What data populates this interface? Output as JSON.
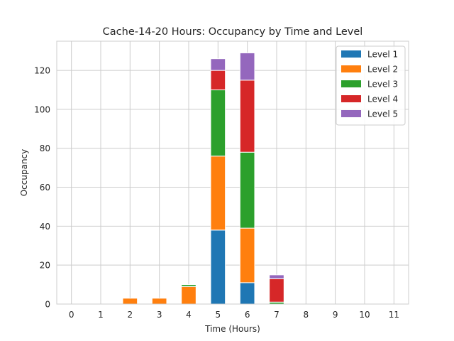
{
  "chart_data": {
    "type": "bar",
    "stacked": true,
    "title": "Cache-14-20 Hours: Occupancy by Time and Level",
    "xlabel": "Time (Hours)",
    "ylabel": "Occupancy",
    "ylim": [
      0,
      135
    ],
    "yticks": [
      0,
      20,
      40,
      60,
      80,
      100,
      120
    ],
    "grid": true,
    "legend_position": "top-right",
    "categories": [
      "0",
      "1",
      "2",
      "3",
      "4",
      "5",
      "6",
      "7",
      "8",
      "9",
      "10",
      "11"
    ],
    "series": [
      {
        "name": "Level 1",
        "color": "#1f77b4",
        "values": [
          0,
          0,
          0,
          0,
          0,
          38,
          11,
          0,
          0,
          0,
          0,
          0
        ]
      },
      {
        "name": "Level 2",
        "color": "#ff7f0e",
        "values": [
          0,
          0,
          3,
          3,
          9,
          38,
          28,
          0,
          0,
          0,
          0,
          0
        ]
      },
      {
        "name": "Level 3",
        "color": "#2ca02c",
        "values": [
          0,
          0,
          0,
          0,
          1,
          34,
          39,
          1,
          0,
          0,
          0,
          0
        ]
      },
      {
        "name": "Level 4",
        "color": "#d62728",
        "values": [
          0,
          0,
          0,
          0,
          0,
          10,
          37,
          12,
          0,
          0,
          0,
          0
        ]
      },
      {
        "name": "Level 5",
        "color": "#9467bd",
        "values": [
          0,
          0,
          0,
          0,
          0,
          6,
          14,
          2,
          0,
          0,
          0,
          0
        ]
      }
    ]
  }
}
